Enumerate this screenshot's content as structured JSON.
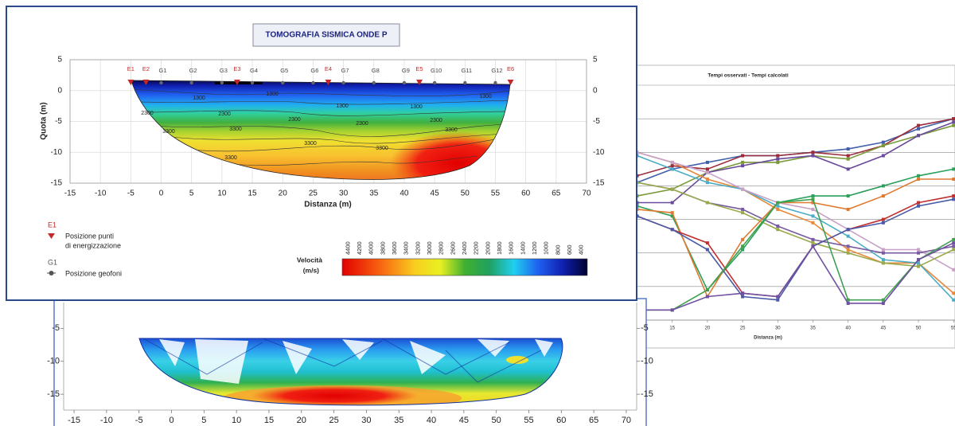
{
  "chart_data": [
    {
      "type": "tomography",
      "title": "TOMOGRAFIA SISMICA ONDE P",
      "xlabel": "Distanza (m)",
      "ylabel": "Quota (m)",
      "xlim": [
        -15,
        70
      ],
      "ylim": [
        -15,
        5
      ],
      "xticks": [
        -15,
        -10,
        -5,
        0,
        5,
        10,
        15,
        20,
        25,
        30,
        35,
        40,
        45,
        50,
        55,
        60,
        65,
        70
      ],
      "yticks": [
        5,
        0,
        -5,
        -10,
        -15
      ],
      "grid": true,
      "contour_levels": [
        1300,
        2300,
        3300
      ],
      "electrodes": {
        "labels": [
          "E1",
          "E2",
          "E3",
          "E4",
          "E5",
          "E6"
        ],
        "x": [
          -5,
          -2.5,
          12.5,
          27.5,
          42.5,
          57.5
        ],
        "color": "#c62828"
      },
      "geophones": {
        "labels": [
          "G1",
          "G2",
          "G3",
          "G4",
          "G5",
          "G6",
          "G7",
          "G8",
          "G9",
          "G10",
          "G11",
          "G12"
        ],
        "x": [
          0,
          5,
          10,
          15,
          20,
          25,
          30,
          35,
          40,
          45,
          50,
          55
        ],
        "color": "#666666"
      },
      "legend": {
        "electrode_symbol": "E1",
        "electrode_text": [
          "Posizione punti",
          "di energizzazione"
        ],
        "geophone_symbol": "G1",
        "geophone_text": "Posizione geofoni"
      },
      "colorbar": {
        "label": [
          "Velocità",
          "(m/s)"
        ],
        "lim": [
          4500,
          300
        ],
        "ticks": [
          4400,
          4200,
          4000,
          3800,
          3600,
          3400,
          3200,
          3000,
          2800,
          2600,
          2400,
          2200,
          2000,
          1800,
          1600,
          1400,
          1200,
          1000,
          800,
          600,
          400
        ]
      }
    },
    {
      "type": "line",
      "title": "Tempi osservati - Tempi calcolati",
      "xlabel": "Distanza (m)",
      "x": [
        10,
        15,
        20,
        25,
        30,
        35,
        40,
        45,
        50,
        55
      ],
      "xlim": [
        9.6,
        55.2
      ],
      "xticks": [
        15,
        20,
        25,
        30,
        35,
        40,
        45,
        50,
        55
      ],
      "ylim": [
        0,
        7
      ],
      "ygrid": [
        1,
        2,
        3,
        4,
        5,
        6,
        7
      ],
      "series": [
        {
          "color": "#3f5fa8",
          "values": [
            4.1,
            4.5,
            4.7,
            4.9,
            4.9,
            5.0,
            5.1,
            5.3,
            5.7,
            6.0
          ]
        },
        {
          "color": "#9b2c3c",
          "values": [
            4.3,
            4.6,
            4.5,
            4.9,
            4.9,
            5.0,
            4.9,
            5.2,
            5.8,
            6.0
          ]
        },
        {
          "color": "#7a9a3a",
          "values": [
            3.7,
            3.9,
            4.4,
            4.7,
            4.7,
            4.9,
            4.8,
            5.2,
            5.5,
            5.8
          ]
        },
        {
          "color": "#6a4a9a",
          "values": [
            3.5,
            3.5,
            4.4,
            4.6,
            4.8,
            4.9,
            4.5,
            4.9,
            5.5,
            5.9
          ]
        },
        {
          "color": "#e8883a",
          "values": [
            5.0,
            4.7,
            4.2,
            3.9,
            3.3,
            2.9,
            2.1,
            1.7,
            1.7,
            0.8
          ]
        },
        {
          "color": "#4bacc6",
          "values": [
            4.9,
            4.5,
            4.1,
            3.9,
            3.4,
            3.1,
            2.5,
            1.8,
            1.7,
            0.6
          ]
        },
        {
          "color": "#c8a0c8",
          "values": [
            5.0,
            4.7,
            4.4,
            3.9,
            3.5,
            3.3,
            2.7,
            2.1,
            2.1,
            1.5
          ]
        },
        {
          "color": "#7a5aa0",
          "values": [
            4.1,
            3.9,
            3.5,
            3.3,
            2.8,
            2.4,
            2.2,
            2.0,
            2.0,
            2.2
          ]
        },
        {
          "color": "#9aaa4a",
          "values": [
            4.1,
            3.9,
            3.5,
            3.2,
            2.7,
            2.3,
            2.0,
            1.7,
            1.6,
            2.1
          ]
        },
        {
          "color": "#2aa05a",
          "values": [
            3.4,
            3.1,
            0.9,
            2.1,
            3.5,
            3.7,
            3.7,
            4.0,
            4.3,
            4.5
          ]
        },
        {
          "color": "#e07a30",
          "values": [
            3.3,
            3.2,
            0.7,
            2.4,
            3.5,
            3.5,
            3.3,
            3.7,
            4.2,
            4.2
          ]
        },
        {
          "color": "#c03030",
          "values": [
            3.1,
            2.7,
            2.3,
            0.8,
            0.7,
            2.2,
            2.7,
            3.0,
            3.5,
            3.7
          ]
        },
        {
          "color": "#4a5aa8",
          "values": [
            3.1,
            2.7,
            2.1,
            0.7,
            0.6,
            2.2,
            2.7,
            2.9,
            3.4,
            3.6
          ]
        },
        {
          "color": "#40a050",
          "values": [
            0.3,
            0.3,
            0.9,
            2.2,
            3.5,
            3.6,
            0.6,
            0.6,
            1.8,
            2.4
          ]
        },
        {
          "color": "#7050a0",
          "values": [
            0.3,
            0.3,
            0.7,
            0.8,
            0.7,
            2.2,
            0.5,
            0.5,
            1.8,
            2.3
          ]
        }
      ]
    },
    {
      "type": "tomography_cells",
      "xlim": [
        -16.6,
        71.6
      ],
      "ylim": [
        -17.4,
        -1.1
      ],
      "xticks": [
        -15,
        -10,
        -5,
        0,
        5,
        10,
        15,
        20,
        25,
        30,
        35,
        40,
        45,
        50,
        55,
        60,
        65,
        70
      ],
      "yticks": [
        -5,
        -10,
        -15
      ]
    }
  ]
}
